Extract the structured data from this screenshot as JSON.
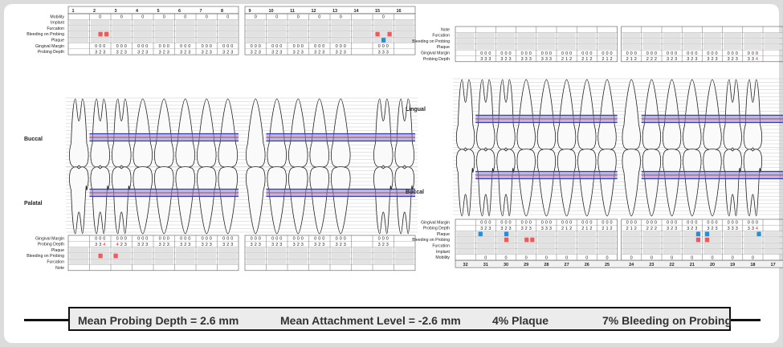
{
  "upper": {
    "tooth_numbers": [
      "1",
      "2",
      "3",
      "4",
      "5",
      "6",
      "7",
      "8",
      "9",
      "10",
      "11",
      "12",
      "13",
      "14",
      "15",
      "16"
    ],
    "buccal_label": "Buccal",
    "palatal_label": "Palatal",
    "top_row_labels": [
      "Mobility",
      "Implant",
      "Furcation",
      "Bleeding on Probing",
      "Plaque",
      "Gingival Margin",
      "Probing Depth"
    ],
    "mobility": [
      "",
      "0",
      "0",
      "0",
      "0",
      "0",
      "0",
      "0",
      "0",
      "0",
      "0",
      "0",
      "0",
      "",
      "0",
      ""
    ],
    "gingival_margin_top": [
      "",
      "0 0 0",
      "0 0 0",
      "0 0 0",
      "0 0 0",
      "0 0 0",
      "0 0 0",
      "0 0 0",
      "0 0 0",
      "0 0 0",
      "0 0 0",
      "0 0 0",
      "0 0 0",
      "",
      "0 0 0",
      ""
    ],
    "probing_depth_top": [
      "",
      "3 2 3",
      "3 2 3",
      "3 2 3",
      "3 2 3",
      "3 2 3",
      "3 2 3",
      "3 2 3",
      "3 2 3",
      "3 2 3",
      "3 2 3",
      "3 2 3",
      "3 2 3",
      "",
      "3 3 3",
      ""
    ],
    "bottom_row_labels": [
      "Gingival Margin",
      "Probing Depth",
      "Plaque",
      "Bleeding on Probing",
      "Furcation",
      "Note"
    ],
    "gingival_margin_bottom": [
      "",
      "0 0 0",
      "0 0 0",
      "0 0 0",
      "0 0 0",
      "0 0 0",
      "0 0 0",
      "0 0 0",
      "0 0 0",
      "0 0 0",
      "0 0 0",
      "0 0 0",
      "0 0 0",
      "",
      "0 0 0",
      ""
    ],
    "probing_depth_bottom": [
      "",
      "3 3 4",
      "4 2 3",
      "3 2 3",
      "3 2 3",
      "3 2 3",
      "3 2 3",
      "3 2 3",
      "3 2 3",
      "3 2 3",
      "3 2 3",
      "3 2 3",
      "3 2 3",
      "",
      "3 2 3",
      ""
    ],
    "red_value_marker": "4"
  },
  "lower": {
    "tooth_numbers": [
      "32",
      "31",
      "30",
      "29",
      "28",
      "27",
      "26",
      "25",
      "24",
      "23",
      "22",
      "21",
      "20",
      "19",
      "18",
      "17"
    ],
    "lingual_label": "Lingual",
    "buccal_label": "Buccal",
    "top_row_labels": [
      "Note",
      "Furcation",
      "Bleeding on Probing",
      "Plaque",
      "Gingival Margin",
      "Probing Depth"
    ],
    "gingival_margin_top": [
      "",
      "0 0 0",
      "0 0 0",
      "0 0 0",
      "0 0 0",
      "0 0 0",
      "0 0 0",
      "0 0 0",
      "0 0 0",
      "0 0 0",
      "0 0 0",
      "0 0 0",
      "0 0 0",
      "0 0 0",
      "0 0 0",
      ""
    ],
    "probing_depth_top": [
      "",
      "3 3 3",
      "3 2 3",
      "3 3 3",
      "3 3 3",
      "2 1 2",
      "2 1 2",
      "2 1 2",
      "2 1 2",
      "2 2 2",
      "3 2 3",
      "3 2 3",
      "3 2 3",
      "3 2 3",
      "3 3 4",
      ""
    ],
    "bottom_row_labels": [
      "Gingival Margin",
      "Probing Depth",
      "Plaque",
      "Bleeding on Probing",
      "Furcation",
      "Implant",
      "Mobility"
    ],
    "gingival_margin_bottom": [
      "",
      "0 0 0",
      "0 0 0",
      "0 0 0",
      "0 0 0",
      "0 0 0",
      "0 0 0",
      "0 0 0",
      "0 0 0",
      "0 0 0",
      "0 0 0",
      "0 0 0",
      "0 0 0",
      "0 0 0",
      "0 0 0",
      ""
    ],
    "probing_depth_bottom": [
      "",
      "3 2 3",
      "3 2 3",
      "3 2 3",
      "3 3 3",
      "2 1 2",
      "2 1 2",
      "2 1 2",
      "2 1 2",
      "2 2 2",
      "3 2 3",
      "3 2 3",
      "3 2 3",
      "3 3 3",
      "3 3 4",
      ""
    ],
    "mobility": [
      "",
      "0",
      "0",
      "0",
      "0",
      "0",
      "0",
      "0",
      "0",
      "0",
      "0",
      "0",
      "0",
      "0",
      "0",
      ""
    ]
  },
  "summary": {
    "mean_probing_depth": "Mean Probing Depth = 2.6 mm",
    "mean_attachment_level": "Mean Attachment Level = -2.6 mm",
    "plaque": "4% Plaque",
    "bleeding": "7% Bleeding on Probing"
  },
  "colors": {
    "bleeding": "#e85c5c",
    "plaque": "#1f8fe0",
    "gum_line": "#3a3aa8",
    "bone_line": "#d23a3a",
    "shade": "#e2e2e2"
  }
}
